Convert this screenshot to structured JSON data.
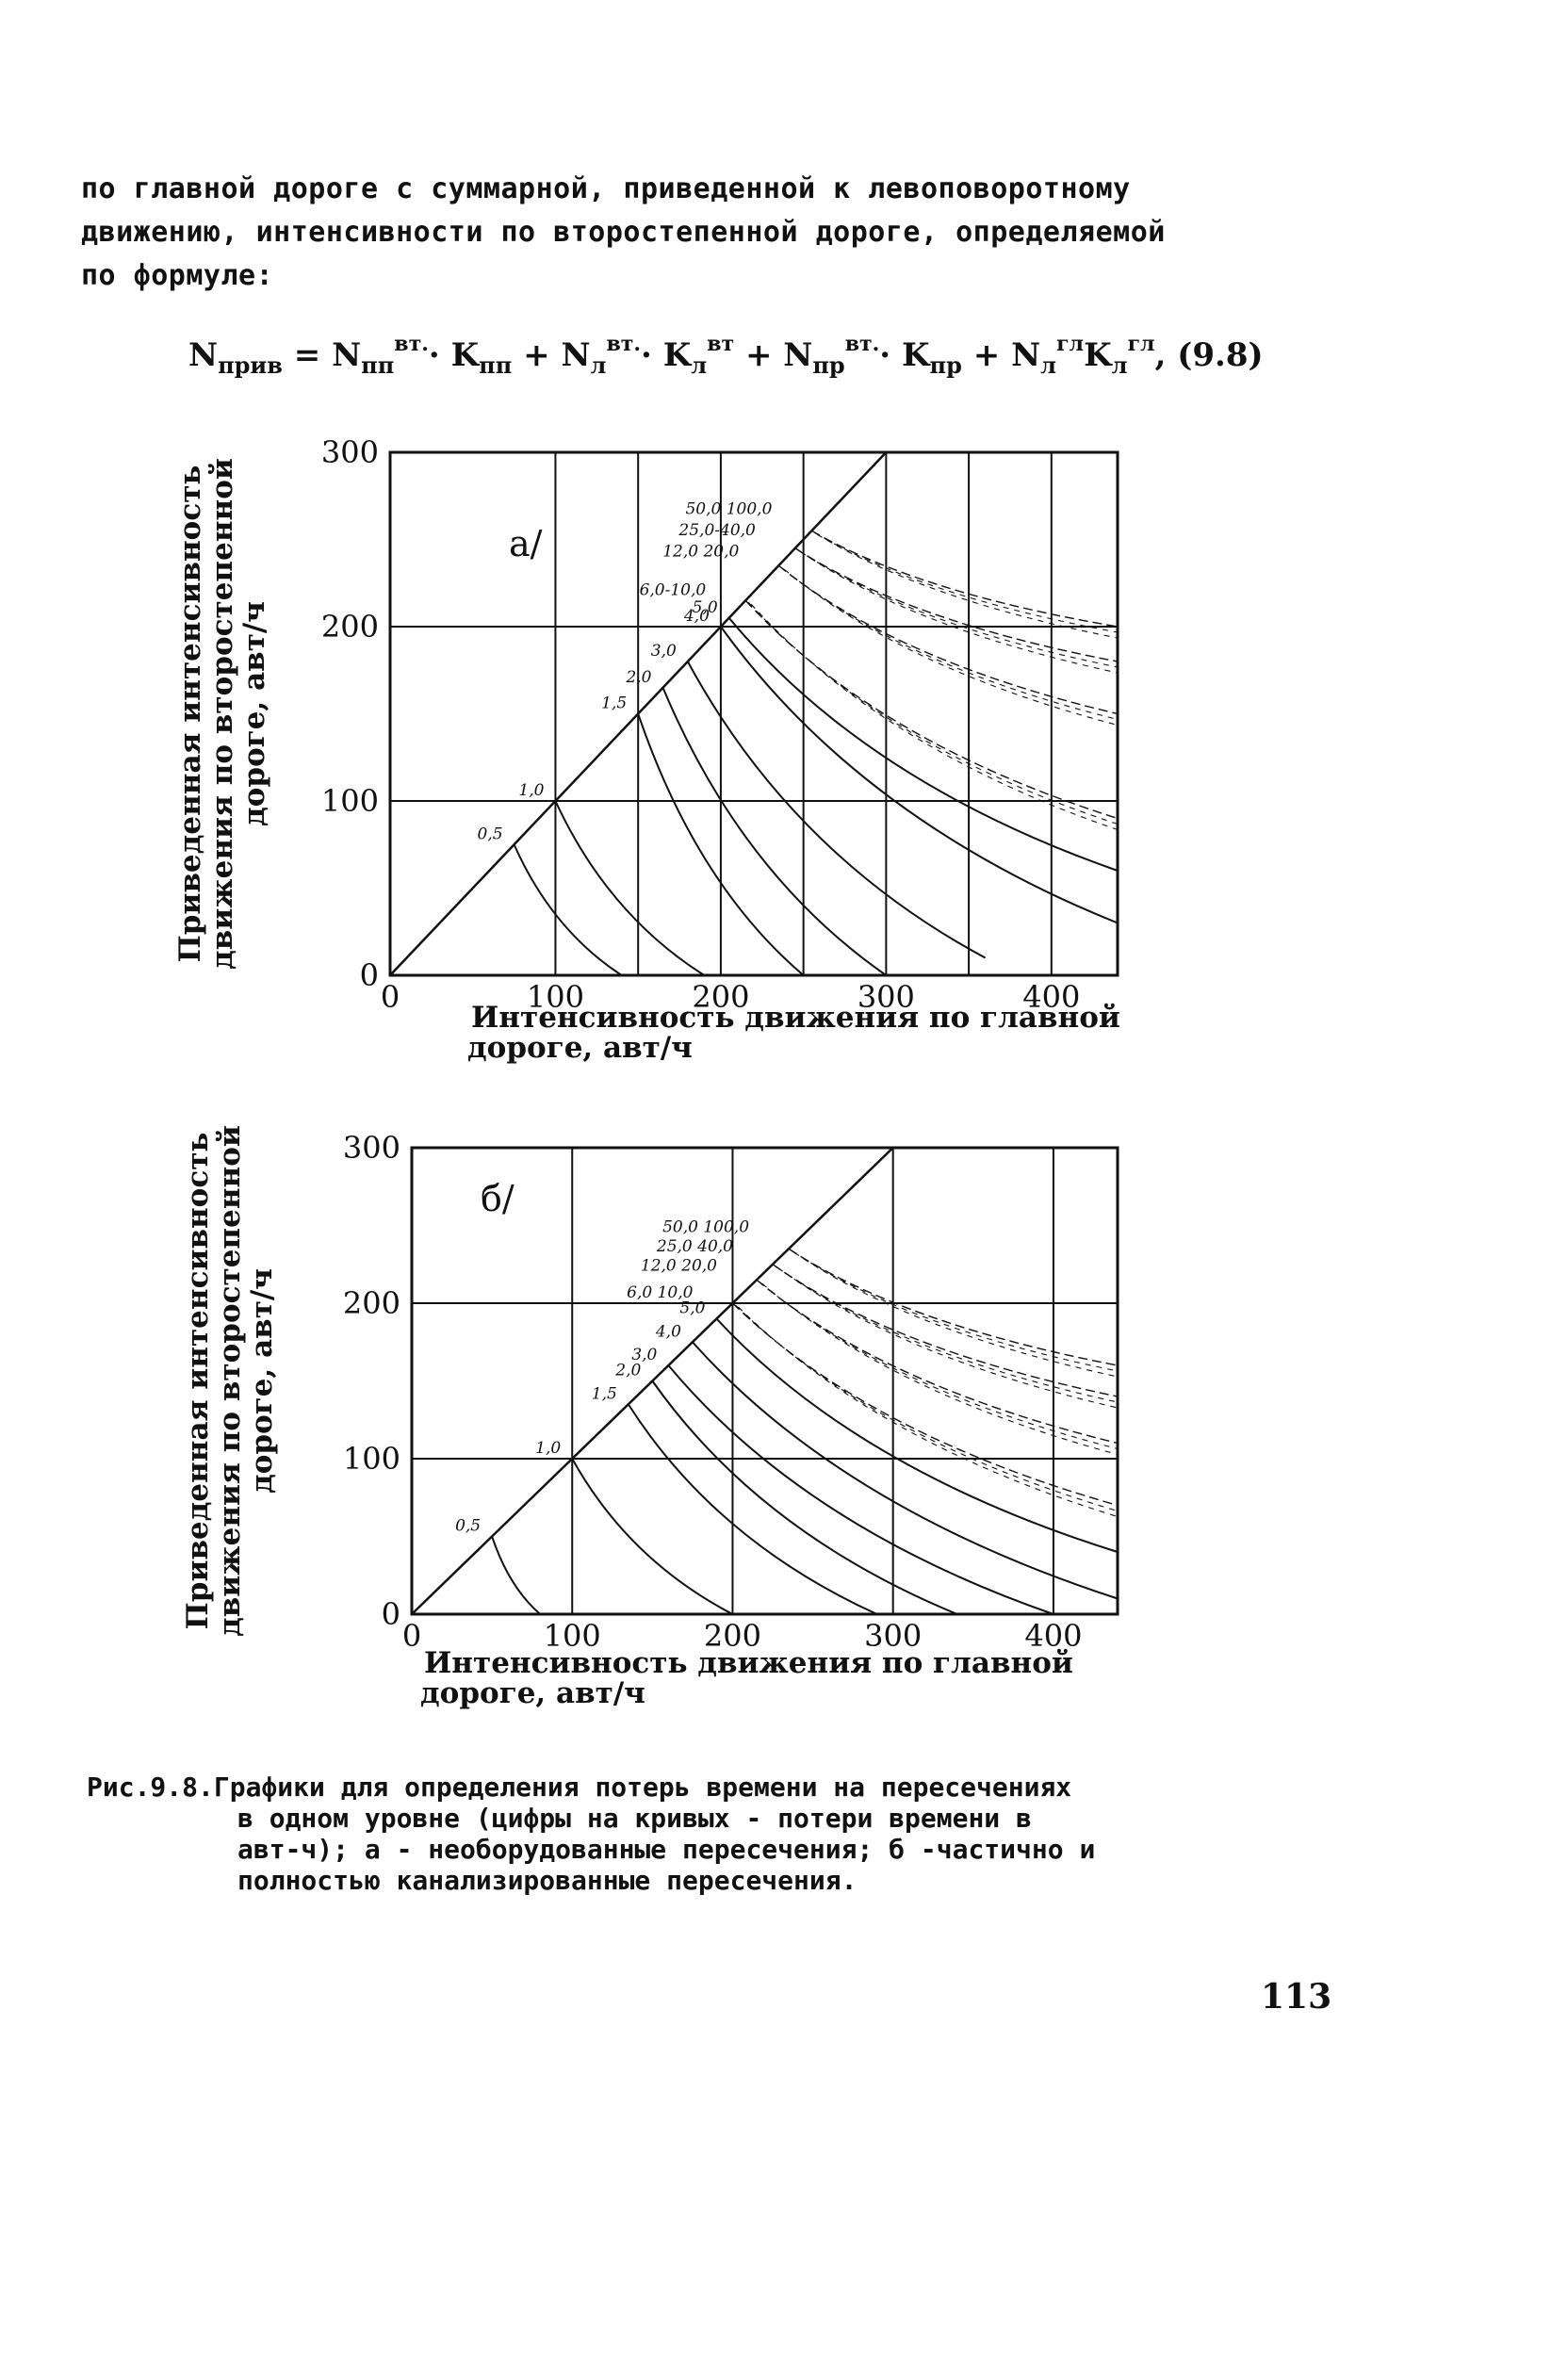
{
  "paragraph": {
    "line1": "по главной дороге с суммарной, приведенной к левоповоротному",
    "line2": "движению, интенсивности по второстепенной дороге, определяемой",
    "line3": "по формуле:"
  },
  "formula": {
    "lhs": "N",
    "lhs_sub": "прив",
    "t1": "N",
    "t1_sub": "пп",
    "t1_sup": "вт.",
    "k1": "K",
    "k1_sub": "пп",
    "t2": "N",
    "t2_sub": "л",
    "t2_sup": "вт.",
    "k2": "K",
    "k2_sub": "л",
    "k2_sup": "вт",
    "t3": "N",
    "t3_sub": "пр",
    "t3_sup": "вт.",
    "k3": "K",
    "k3_sub": "пр",
    "t4": "N",
    "t4_sub": "л",
    "t4_sup": "гл",
    "k4": "K",
    "k4_sub": "л",
    "k4_sup": "гл",
    "number": "(9.8)"
  },
  "chart_data": [
    {
      "type": "line",
      "panel_label": "а/",
      "xlabel_line1": "Интенсивность движения по главной",
      "xlabel_line2": "дороге, авт/ч",
      "ylabel_line1": "Приведенная интенсивность",
      "ylabel_line2": "движения по второстепенной",
      "ylabel_line3": "дороге, авт/ч",
      "xlim": [
        0,
        440
      ],
      "ylim": [
        0,
        300
      ],
      "x_ticks": [
        "0",
        "100",
        "200",
        "300",
        "400"
      ],
      "y_ticks": [
        "0",
        "100",
        "200",
        "300"
      ],
      "x_gridlines": [
        100,
        150,
        200,
        250,
        300,
        350,
        400
      ],
      "y_gridlines": [
        100,
        200
      ],
      "boundary_line": {
        "x": [
          0,
          300
        ],
        "y": [
          0,
          300
        ]
      },
      "series": [
        {
          "label": "0,5",
          "start": [
            75,
            75
          ],
          "end": [
            140,
            0
          ]
        },
        {
          "label": "1,0",
          "start": [
            100,
            100
          ],
          "end": [
            190,
            0
          ]
        },
        {
          "label": "1,5",
          "start": [
            150,
            150
          ],
          "end": [
            250,
            0
          ]
        },
        {
          "label": "2,0",
          "start": [
            165,
            165
          ],
          "end": [
            300,
            0
          ]
        },
        {
          "label": "3,0",
          "start": [
            180,
            180
          ],
          "end": [
            360,
            10
          ]
        },
        {
          "label": "4,0",
          "start": [
            200,
            200
          ],
          "end": [
            440,
            30
          ]
        },
        {
          "label": "5,0",
          "start": [
            205,
            205
          ],
          "end": [
            440,
            60
          ]
        },
        {
          "label": "6,0-10,0",
          "start": [
            215,
            215
          ],
          "end": [
            440,
            90
          ]
        },
        {
          "label": "12,0 20,0",
          "start": [
            235,
            235
          ],
          "end": [
            440,
            150
          ]
        },
        {
          "label": "25,0-40,0",
          "start": [
            245,
            245
          ],
          "end": [
            440,
            180
          ]
        },
        {
          "label": "50,0 100,0",
          "start": [
            255,
            255
          ],
          "end": [
            440,
            200
          ]
        }
      ]
    },
    {
      "type": "line",
      "panel_label": "б/",
      "xlabel_line1": "Интенсивность движения по главной",
      "xlabel_line2": "дороге, авт/ч",
      "ylabel_line1": "Приведенная интенсивность",
      "ylabel_line2": "движения по второстепенной",
      "ylabel_line3": "дороге, авт/ч",
      "xlim": [
        0,
        440
      ],
      "ylim": [
        0,
        300
      ],
      "x_ticks": [
        "0",
        "100",
        "200",
        "300",
        "400"
      ],
      "y_ticks": [
        "0",
        "100",
        "200",
        "300"
      ],
      "x_gridlines": [
        100,
        200,
        300,
        400
      ],
      "y_gridlines": [
        100,
        200
      ],
      "boundary_line": {
        "x": [
          0,
          300
        ],
        "y": [
          0,
          300
        ]
      },
      "series": [
        {
          "label": "0,5",
          "start": [
            50,
            50
          ],
          "end": [
            80,
            0
          ]
        },
        {
          "label": "1,0",
          "start": [
            100,
            100
          ],
          "end": [
            200,
            0
          ]
        },
        {
          "label": "1,5",
          "start": [
            135,
            135
          ],
          "end": [
            290,
            0
          ]
        },
        {
          "label": "2,0",
          "start": [
            150,
            150
          ],
          "end": [
            340,
            0
          ]
        },
        {
          "label": "3,0",
          "start": [
            160,
            160
          ],
          "end": [
            400,
            0
          ]
        },
        {
          "label": "4,0",
          "start": [
            175,
            175
          ],
          "end": [
            440,
            10
          ]
        },
        {
          "label": "5,0",
          "start": [
            190,
            190
          ],
          "end": [
            440,
            40
          ]
        },
        {
          "label": "6,0 10,0",
          "start": [
            200,
            200
          ],
          "end": [
            440,
            70
          ]
        },
        {
          "label": "12,0 20,0",
          "start": [
            215,
            215
          ],
          "end": [
            440,
            110
          ]
        },
        {
          "label": "25,0 40,0",
          "start": [
            225,
            225
          ],
          "end": [
            440,
            140
          ]
        },
        {
          "label": "50,0 100,0",
          "start": [
            235,
            235
          ],
          "end": [
            440,
            160
          ]
        }
      ]
    }
  ],
  "caption": {
    "line1": "Рис.9.8.Графики для определения потерь времени на пересечениях",
    "line2": "в одном уровне (цифры на кривых - потери времени в",
    "line3": "авт-ч); а - необорудованные пересечения; б -частично и",
    "line4": "полностью канализированные пересечения."
  },
  "page_number": "113"
}
